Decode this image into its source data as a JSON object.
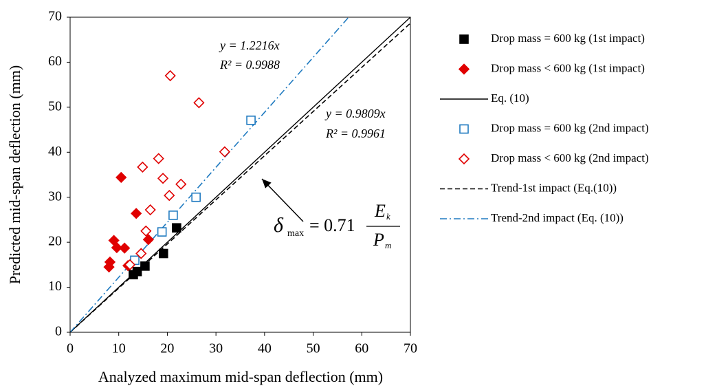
{
  "chart_data": {
    "type": "scatter",
    "xlabel": "Analyzed maximum mid-span deflection (mm)",
    "ylabel": "Predicted mid-span deflection (mm)",
    "xlim": [
      0,
      70
    ],
    "ylim": [
      0,
      70
    ],
    "xticks": [
      0,
      10,
      20,
      30,
      40,
      50,
      60,
      70
    ],
    "yticks": [
      0,
      10,
      20,
      30,
      40,
      50,
      60,
      70
    ],
    "grid": false,
    "legend": "right",
    "series": [
      {
        "name": "Drop mass = 600 kg (1st impact)",
        "color": "#000000",
        "marker": "square",
        "filled": true,
        "x": [
          13.0,
          13.8,
          15.4,
          19.2,
          21.9
        ],
        "values": [
          12.8,
          13.5,
          14.7,
          17.5,
          23.2
        ]
      },
      {
        "name": "Drop mass < 600 kg (1st impact)",
        "color": "#e00000",
        "marker": "diamond",
        "filled": true,
        "x": [
          8.0,
          8.2,
          9.0,
          9.6,
          10.5,
          11.2,
          11.9,
          13.6,
          16.1
        ],
        "values": [
          14.5,
          15.6,
          20.4,
          18.8,
          34.4,
          18.7,
          14.8,
          26.4,
          20.6
        ]
      },
      {
        "name": "Eq. (10)",
        "color": "#000000",
        "marker": "line",
        "style": "solid",
        "x": [
          0,
          70
        ],
        "values": [
          0,
          70
        ]
      },
      {
        "name": "Drop mass = 600 kg (2nd impact)",
        "color": "#1f7ac0",
        "marker": "square",
        "filled": false,
        "x": [
          13.3,
          18.9,
          21.2,
          25.9,
          37.2
        ],
        "values": [
          16.0,
          22.3,
          26.0,
          30.0,
          47.1
        ]
      },
      {
        "name": "Drop mass < 600 kg (2nd impact)",
        "color": "#e00000",
        "marker": "diamond",
        "filled": false,
        "x": [
          20.6,
          26.5,
          31.8,
          14.9,
          18.2,
          19.1,
          22.8,
          16.5,
          20.4,
          15.6,
          14.6,
          12.3
        ],
        "values": [
          57.0,
          51.0,
          40.1,
          36.7,
          38.6,
          34.2,
          32.9,
          27.2,
          30.4,
          22.5,
          17.5,
          15.0
        ]
      },
      {
        "name": "Trend-1st impact (Eq.(10))",
        "color": "#000000",
        "marker": "line",
        "style": "dashed",
        "x": [
          0,
          70
        ],
        "values": [
          0,
          68.66
        ]
      },
      {
        "name": "Trend-2nd impact (Eq. (10))",
        "color": "#1f7ac0",
        "marker": "line",
        "style": "dashdot",
        "x": [
          0,
          57.3
        ],
        "values": [
          0,
          70
        ]
      }
    ],
    "annotations": {
      "trend2_equation": "y = 1.2216x",
      "trend2_r2": "R² = 0.9988",
      "trend1_equation": "y = 0.9809x",
      "trend1_r2": "R² = 0.9961",
      "formula": {
        "symbol": "δ",
        "symbol_sub": "max",
        "coefficient": "= 0.71",
        "numerator": "E",
        "numerator_sub": "k",
        "denominator": "P",
        "denominator_sub": "m"
      }
    }
  }
}
